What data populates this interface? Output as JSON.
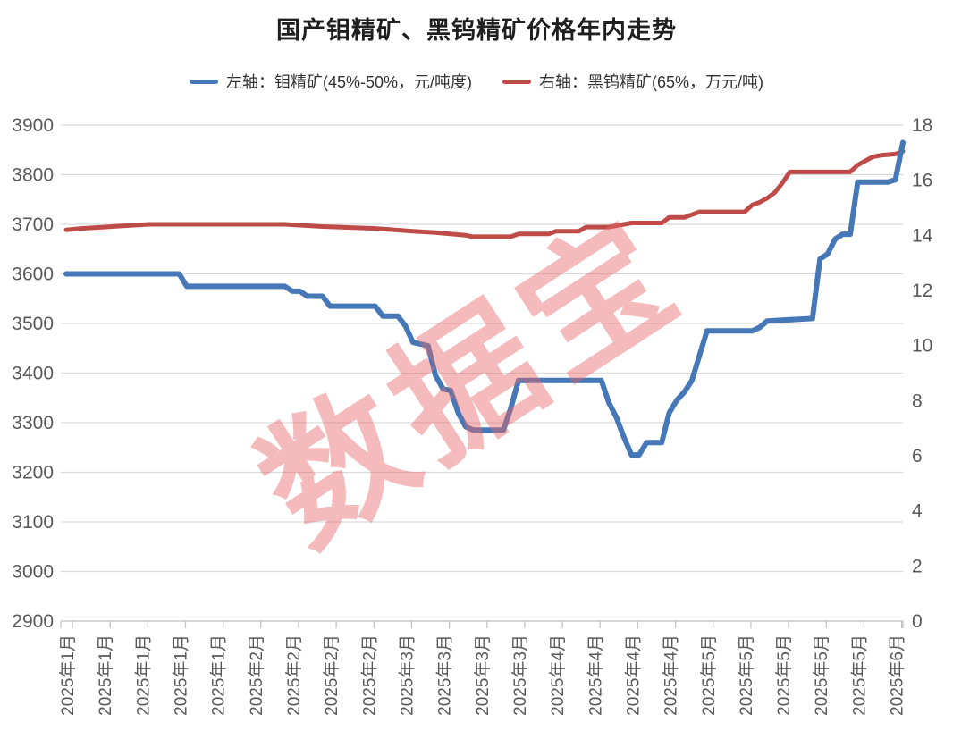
{
  "watermark": {
    "text": "数据宝",
    "color": "#e7686c"
  },
  "chart_data": {
    "type": "line",
    "title": "国产钼精矿、黑钨精矿价格年内走势",
    "x_unit": "2025年1月–6月 交易日序列（每5个交易日一个刻度标签）",
    "x_labels": [
      "2025年1月",
      "2025年1月",
      "2025年1月",
      "2025年1月",
      "2025年1月",
      "2025年2月",
      "2025年2月",
      "2025年2月",
      "2025年2月",
      "2025年3月",
      "2025年3月",
      "2025年3月",
      "2025年3月",
      "2025年4月",
      "2025年4月",
      "2025年4月",
      "2025年4月",
      "2025年5月",
      "2025年5月",
      "2025年5月",
      "2025年5月",
      "2025年5月",
      "2025年6月"
    ],
    "left_axis": {
      "ticks": [
        3900,
        3800,
        3700,
        3600,
        3500,
        3400,
        3300,
        3200,
        3100,
        3000,
        2900
      ],
      "min": 2900,
      "max": 3900
    },
    "right_axis": {
      "ticks": [
        18,
        16,
        14,
        12,
        10,
        8,
        6,
        4,
        2,
        0
      ],
      "min": 0,
      "max": 18
    },
    "grid": true,
    "legend_position": "top",
    "colors": {
      "grid": "#d9d9d9",
      "axis": "#bfbfbf",
      "tick_text": "#595959"
    },
    "series": [
      {
        "name": "左轴：钼精矿(45%-50%，元/吨度)",
        "axis": "left",
        "color": "#4677b6",
        "width": 6,
        "points": [
          [
            0,
            3600
          ],
          [
            15,
            3600
          ],
          [
            16,
            3575
          ],
          [
            29,
            3575
          ],
          [
            30,
            3565
          ],
          [
            31,
            3565
          ],
          [
            32,
            3555
          ],
          [
            34,
            3555
          ],
          [
            35,
            3535
          ],
          [
            41,
            3535
          ],
          [
            42,
            3515
          ],
          [
            44,
            3515
          ],
          [
            45,
            3495
          ],
          [
            46,
            3462
          ],
          [
            48,
            3455
          ],
          [
            49,
            3395
          ],
          [
            50,
            3368
          ],
          [
            51,
            3365
          ],
          [
            52,
            3320
          ],
          [
            53,
            3292
          ],
          [
            54,
            3285
          ],
          [
            58,
            3285
          ],
          [
            59,
            3330
          ],
          [
            60,
            3385
          ],
          [
            71,
            3385
          ],
          [
            72,
            3340
          ],
          [
            73,
            3310
          ],
          [
            74,
            3270
          ],
          [
            75,
            3235
          ],
          [
            76,
            3235
          ],
          [
            77,
            3260
          ],
          [
            79,
            3260
          ],
          [
            80,
            3320
          ],
          [
            81,
            3345
          ],
          [
            82,
            3362
          ],
          [
            83,
            3385
          ],
          [
            84,
            3435
          ],
          [
            85,
            3485
          ],
          [
            91,
            3485
          ],
          [
            92,
            3492
          ],
          [
            93,
            3505
          ],
          [
            99,
            3510
          ],
          [
            100,
            3630
          ],
          [
            101,
            3640
          ],
          [
            102,
            3670
          ],
          [
            103,
            3680
          ],
          [
            104,
            3680
          ],
          [
            105,
            3785
          ],
          [
            109,
            3785
          ],
          [
            110,
            3790
          ],
          [
            111,
            3865
          ]
        ]
      },
      {
        "name": "右轴：黑钨精矿(65%，万元/吨)",
        "axis": "right",
        "color": "#bf4b48",
        "width": 5,
        "points": [
          [
            0,
            14.2
          ],
          [
            2,
            14.25
          ],
          [
            5,
            14.3
          ],
          [
            8,
            14.35
          ],
          [
            11,
            14.4
          ],
          [
            29,
            14.4
          ],
          [
            34,
            14.32
          ],
          [
            41,
            14.25
          ],
          [
            46,
            14.15
          ],
          [
            49,
            14.1
          ],
          [
            53,
            14.0
          ],
          [
            54,
            13.95
          ],
          [
            59,
            13.95
          ],
          [
            60,
            14.05
          ],
          [
            64,
            14.05
          ],
          [
            65,
            14.15
          ],
          [
            68,
            14.15
          ],
          [
            69,
            14.3
          ],
          [
            72,
            14.3
          ],
          [
            73,
            14.35
          ],
          [
            74,
            14.4
          ],
          [
            75,
            14.45
          ],
          [
            79,
            14.45
          ],
          [
            80,
            14.65
          ],
          [
            82,
            14.65
          ],
          [
            83,
            14.75
          ],
          [
            84,
            14.85
          ],
          [
            90,
            14.85
          ],
          [
            91,
            15.1
          ],
          [
            92,
            15.2
          ],
          [
            93,
            15.35
          ],
          [
            94,
            15.55
          ],
          [
            95,
            15.9
          ],
          [
            96,
            16.3
          ],
          [
            104,
            16.3
          ],
          [
            105,
            16.55
          ],
          [
            106,
            16.7
          ],
          [
            107,
            16.85
          ],
          [
            108,
            16.9
          ],
          [
            110,
            16.95
          ],
          [
            111,
            17.05
          ]
        ]
      }
    ]
  }
}
